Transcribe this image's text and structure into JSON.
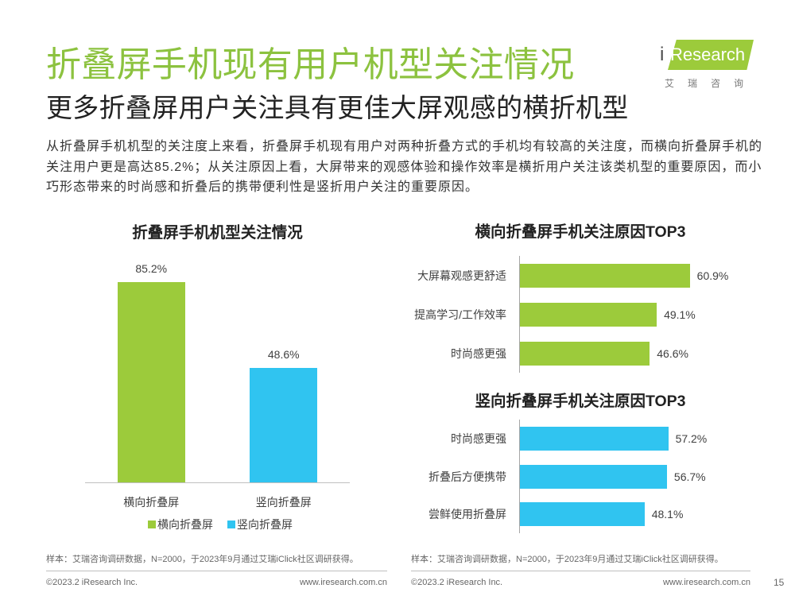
{
  "title": "折叠屏手机现有用户机型关注情况",
  "subtitle": "更多折叠屏用户关注具有更佳大屏观感的横折机型",
  "logo": {
    "brand_i": "i",
    "brand_rest": "Research",
    "cn": "艾瑞咨询"
  },
  "summary": {
    "lines": [
      "从折叠屏手机机型的关注度上来看，折叠屏手机现有用户对两种折叠方式的手机均有较高的关注度，而横向折叠屏手机的",
      "关注用户更是高达85.2%；从关注原因上看，大屏带来的观感体验和操作效率是横折用户关注该类机型的重要原因，而小",
      "巧形态带来的时尚感和折叠后的携带便利性是竖折用户关注的重要原因。"
    ]
  },
  "colors": {
    "title_green": "#8CC23F",
    "text_dark": "#222222",
    "bar_green": "#9CCB3B",
    "bar_blue": "#30C4F0",
    "axis_gray": "#A6A6A6",
    "footer_gray": "#666666"
  },
  "chart_data": [
    {
      "type": "bar",
      "orientation": "vertical",
      "title": "折叠屏手机机型关注情况",
      "categories": [
        "横向折叠屏",
        "竖向折叠屏"
      ],
      "values": [
        85.2,
        48.6
      ],
      "data_labels": [
        "85.2%",
        "48.6%"
      ],
      "bar_colors": [
        "#9CCB3B",
        "#30C4F0"
      ],
      "legend": [
        "横向折叠屏",
        "竖向折叠屏"
      ],
      "legend_position": "bottom",
      "ylim": [
        0,
        100
      ],
      "grid": false
    },
    {
      "type": "bar",
      "orientation": "horizontal",
      "title": "横向折叠屏手机关注原因TOP3",
      "categories": [
        "大屏幕观感更舒适",
        "提高学习/工作效率",
        "时尚感更强"
      ],
      "values": [
        60.9,
        49.1,
        46.6
      ],
      "data_labels": [
        "60.9%",
        "49.1%",
        "46.6%"
      ],
      "bar_color": "#9CCB3B",
      "xlim": [
        0,
        80
      ],
      "grid": false
    },
    {
      "type": "bar",
      "orientation": "horizontal",
      "title": "竖向折叠屏手机关注原因TOP3",
      "categories": [
        "时尚感更强",
        "折叠后方便携带",
        "尝鲜使用折叠屏"
      ],
      "values": [
        57.2,
        56.7,
        48.1
      ],
      "data_labels": [
        "57.2%",
        "56.7%",
        "48.1%"
      ],
      "bar_color": "#30C4F0",
      "xlim": [
        0,
        86
      ],
      "grid": false
    }
  ],
  "footer": {
    "panels": [
      {
        "note": "样本：艾瑞咨询调研数据，N=2000，于2023年9月通过艾瑞iClick社区调研获得。",
        "copyright": "©2023.2 iResearch Inc.",
        "url": "www.iresearch.com.cn"
      },
      {
        "note": "样本：艾瑞咨询调研数据，N=2000，于2023年9月通过艾瑞iClick社区调研获得。",
        "copyright": "©2023.2 iResearch Inc.",
        "url": "www.iresearch.com.cn"
      }
    ],
    "page_number": "15"
  }
}
